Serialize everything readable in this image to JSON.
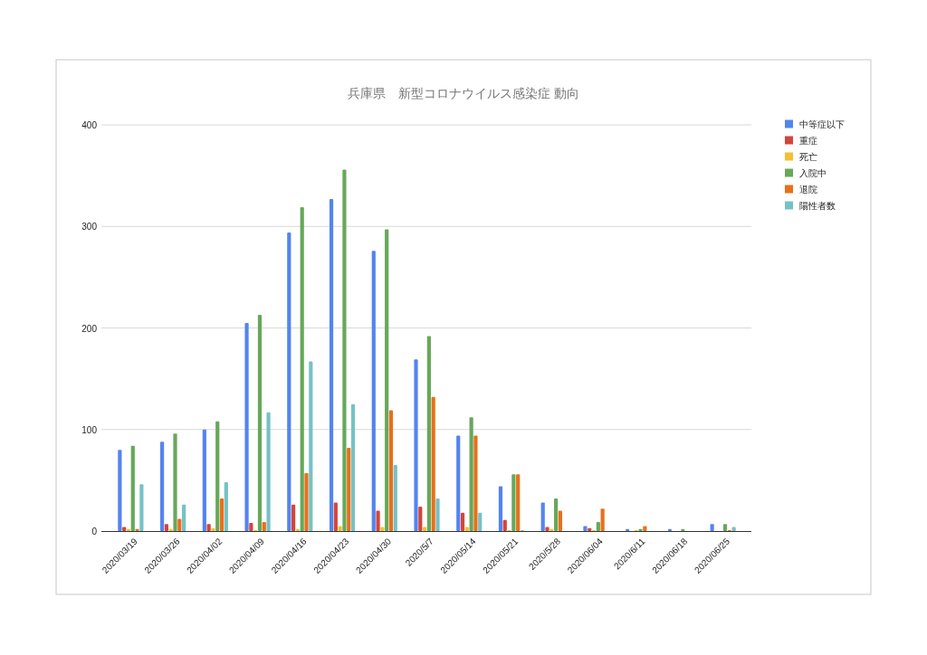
{
  "chart_data": {
    "type": "bar",
    "title": "兵庫県　新型コロナウイルス感染症 動向",
    "categories": [
      "2020/03/19",
      "2020/03/26",
      "2020/04/02",
      "2020/04/09",
      "2020/04/16",
      "2020/04/23",
      "2020/04/30",
      "2020/5/7",
      "2020/05/14",
      "2020/05/21",
      "2020/5/28",
      "2020/06/04",
      "2020/6/11",
      "2020/06/18",
      "2020/06/25"
    ],
    "series": [
      {
        "name": "中等症以下",
        "color": "#5484f0",
        "values": [
          80,
          88,
          100,
          205,
          294,
          327,
          276,
          169,
          94,
          44,
          28,
          5,
          2,
          2,
          7
        ]
      },
      {
        "name": "重症",
        "color": "#d4453a",
        "values": [
          4,
          7,
          7,
          8,
          26,
          28,
          20,
          24,
          18,
          11,
          4,
          3,
          0,
          0,
          0
        ]
      },
      {
        "name": "死亡",
        "color": "#f3c12d",
        "values": [
          2,
          2,
          3,
          1,
          2,
          5,
          4,
          4,
          4,
          1,
          2,
          1,
          1,
          0,
          0
        ]
      },
      {
        "name": "入院中",
        "color": "#67a85a",
        "values": [
          84,
          96,
          108,
          213,
          319,
          356,
          297,
          192,
          112,
          56,
          32,
          9,
          2,
          2,
          7
        ]
      },
      {
        "name": "退院",
        "color": "#e8701a",
        "values": [
          2,
          12,
          32,
          9,
          57,
          82,
          119,
          132,
          94,
          56,
          20,
          22,
          5,
          0,
          1
        ]
      },
      {
        "name": "陽性者数",
        "color": "#77c1c6",
        "values": [
          46,
          26,
          48,
          117,
          167,
          125,
          65,
          32,
          18,
          1,
          0,
          0,
          0,
          0,
          4
        ]
      }
    ],
    "ylim": [
      0,
      400
    ],
    "yticks": [
      0,
      100,
      200,
      300,
      400
    ],
    "grid": "y",
    "legend": "right"
  }
}
